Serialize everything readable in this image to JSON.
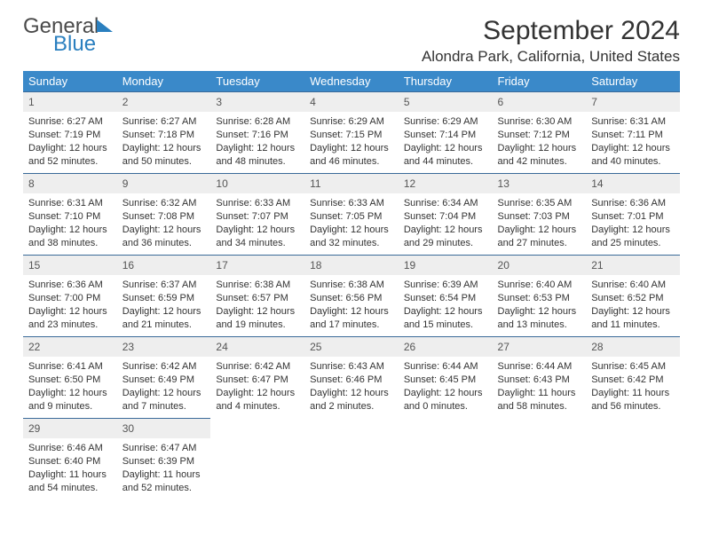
{
  "logo": {
    "top": "General",
    "bottom": "Blue"
  },
  "title": "September 2024",
  "location": "Alondra Park, California, United States",
  "header_bg": "#3a89c9",
  "weekdays": [
    "Sunday",
    "Monday",
    "Tuesday",
    "Wednesday",
    "Thursday",
    "Friday",
    "Saturday"
  ],
  "labels": {
    "sunrise": "Sunrise:",
    "sunset": "Sunset:",
    "daylight": "Daylight:"
  },
  "weeks": [
    [
      {
        "n": "1",
        "sr": "6:27 AM",
        "ss": "7:19 PM",
        "dl": "12 hours and 52 minutes."
      },
      {
        "n": "2",
        "sr": "6:27 AM",
        "ss": "7:18 PM",
        "dl": "12 hours and 50 minutes."
      },
      {
        "n": "3",
        "sr": "6:28 AM",
        "ss": "7:16 PM",
        "dl": "12 hours and 48 minutes."
      },
      {
        "n": "4",
        "sr": "6:29 AM",
        "ss": "7:15 PM",
        "dl": "12 hours and 46 minutes."
      },
      {
        "n": "5",
        "sr": "6:29 AM",
        "ss": "7:14 PM",
        "dl": "12 hours and 44 minutes."
      },
      {
        "n": "6",
        "sr": "6:30 AM",
        "ss": "7:12 PM",
        "dl": "12 hours and 42 minutes."
      },
      {
        "n": "7",
        "sr": "6:31 AM",
        "ss": "7:11 PM",
        "dl": "12 hours and 40 minutes."
      }
    ],
    [
      {
        "n": "8",
        "sr": "6:31 AM",
        "ss": "7:10 PM",
        "dl": "12 hours and 38 minutes."
      },
      {
        "n": "9",
        "sr": "6:32 AM",
        "ss": "7:08 PM",
        "dl": "12 hours and 36 minutes."
      },
      {
        "n": "10",
        "sr": "6:33 AM",
        "ss": "7:07 PM",
        "dl": "12 hours and 34 minutes."
      },
      {
        "n": "11",
        "sr": "6:33 AM",
        "ss": "7:05 PM",
        "dl": "12 hours and 32 minutes."
      },
      {
        "n": "12",
        "sr": "6:34 AM",
        "ss": "7:04 PM",
        "dl": "12 hours and 29 minutes."
      },
      {
        "n": "13",
        "sr": "6:35 AM",
        "ss": "7:03 PM",
        "dl": "12 hours and 27 minutes."
      },
      {
        "n": "14",
        "sr": "6:36 AM",
        "ss": "7:01 PM",
        "dl": "12 hours and 25 minutes."
      }
    ],
    [
      {
        "n": "15",
        "sr": "6:36 AM",
        "ss": "7:00 PM",
        "dl": "12 hours and 23 minutes."
      },
      {
        "n": "16",
        "sr": "6:37 AM",
        "ss": "6:59 PM",
        "dl": "12 hours and 21 minutes."
      },
      {
        "n": "17",
        "sr": "6:38 AM",
        "ss": "6:57 PM",
        "dl": "12 hours and 19 minutes."
      },
      {
        "n": "18",
        "sr": "6:38 AM",
        "ss": "6:56 PM",
        "dl": "12 hours and 17 minutes."
      },
      {
        "n": "19",
        "sr": "6:39 AM",
        "ss": "6:54 PM",
        "dl": "12 hours and 15 minutes."
      },
      {
        "n": "20",
        "sr": "6:40 AM",
        "ss": "6:53 PM",
        "dl": "12 hours and 13 minutes."
      },
      {
        "n": "21",
        "sr": "6:40 AM",
        "ss": "6:52 PM",
        "dl": "12 hours and 11 minutes."
      }
    ],
    [
      {
        "n": "22",
        "sr": "6:41 AM",
        "ss": "6:50 PM",
        "dl": "12 hours and 9 minutes."
      },
      {
        "n": "23",
        "sr": "6:42 AM",
        "ss": "6:49 PM",
        "dl": "12 hours and 7 minutes."
      },
      {
        "n": "24",
        "sr": "6:42 AM",
        "ss": "6:47 PM",
        "dl": "12 hours and 4 minutes."
      },
      {
        "n": "25",
        "sr": "6:43 AM",
        "ss": "6:46 PM",
        "dl": "12 hours and 2 minutes."
      },
      {
        "n": "26",
        "sr": "6:44 AM",
        "ss": "6:45 PM",
        "dl": "12 hours and 0 minutes."
      },
      {
        "n": "27",
        "sr": "6:44 AM",
        "ss": "6:43 PM",
        "dl": "11 hours and 58 minutes."
      },
      {
        "n": "28",
        "sr": "6:45 AM",
        "ss": "6:42 PM",
        "dl": "11 hours and 56 minutes."
      }
    ],
    [
      {
        "n": "29",
        "sr": "6:46 AM",
        "ss": "6:40 PM",
        "dl": "11 hours and 54 minutes."
      },
      {
        "n": "30",
        "sr": "6:47 AM",
        "ss": "6:39 PM",
        "dl": "11 hours and 52 minutes."
      },
      null,
      null,
      null,
      null,
      null
    ]
  ]
}
